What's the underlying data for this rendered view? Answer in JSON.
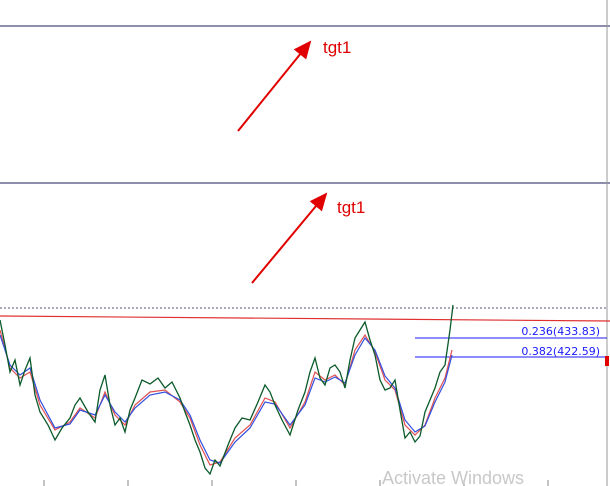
{
  "annotations": [
    "tgt1",
    "tgt1"
  ],
  "fib_levels": [
    "0.236(433.83)",
    "0.382(422.59)"
  ],
  "watermark": "Activate Windows"
}
